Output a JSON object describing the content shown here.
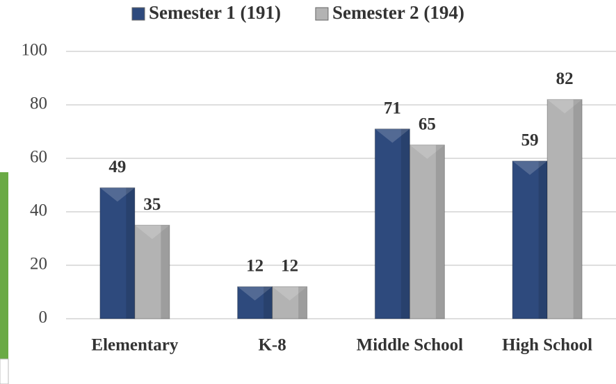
{
  "chart_data": {
    "type": "bar",
    "categories": [
      "Elementary",
      "K-8",
      "Middle School",
      "High School"
    ],
    "series": [
      {
        "name": "Semester 1 (191)",
        "color": "#2e4a7d",
        "values": [
          49,
          12,
          71,
          59
        ]
      },
      {
        "name": "Semester 2 (194)",
        "color": "#b3b3b3",
        "values": [
          35,
          12,
          65,
          82
        ]
      }
    ],
    "ylim": [
      0,
      100
    ],
    "yticks": [
      0,
      20,
      40,
      60,
      80,
      100
    ],
    "grid": true,
    "legend": "top"
  }
}
